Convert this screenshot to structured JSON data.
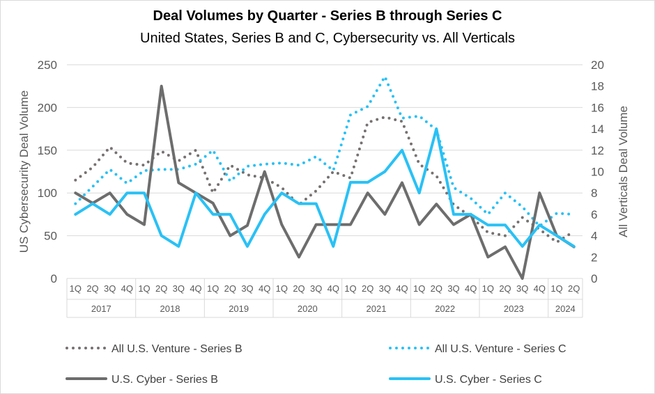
{
  "chart_data": {
    "type": "line",
    "title": "Deal Volumes by Quarter - Series B through Series C",
    "subtitle": "United States, Series B and C, Cybersecurity vs. All Verticals",
    "ylabel": "US Cybersecurity Deal Volume",
    "y2label": "All Verticals Deal Volume",
    "ylim": [
      0,
      250
    ],
    "y2lim": [
      0,
      20
    ],
    "yticks": [
      0,
      50,
      100,
      150,
      200,
      250
    ],
    "y2ticks": [
      0,
      2,
      4,
      6,
      8,
      10,
      12,
      14,
      16,
      18,
      20
    ],
    "quarters": [
      "1Q",
      "2Q",
      "3Q",
      "4Q",
      "1Q",
      "2Q",
      "3Q",
      "4Q",
      "1Q",
      "2Q",
      "3Q",
      "4Q",
      "1Q",
      "2Q",
      "3Q",
      "4Q",
      "1Q",
      "2Q",
      "3Q",
      "4Q",
      "1Q",
      "2Q",
      "3Q",
      "4Q",
      "1Q",
      "2Q",
      "3Q",
      "4Q",
      "1Q",
      "2Q"
    ],
    "years": [
      {
        "label": "2017",
        "count": 4
      },
      {
        "label": "2018",
        "count": 4
      },
      {
        "label": "2019",
        "count": 4
      },
      {
        "label": "2020",
        "count": 4
      },
      {
        "label": "2021",
        "count": 4
      },
      {
        "label": "2022",
        "count": 4
      },
      {
        "label": "2023",
        "count": 4
      },
      {
        "label": "2024",
        "count": 2
      }
    ],
    "grid": true,
    "legend_position": "bottom",
    "series": [
      {
        "name": "All U.S. Venture - Series B",
        "axis": "right",
        "style": "dotted",
        "color": "#767171",
        "values": [
          9.2,
          10.4,
          12.3,
          10.8,
          10.6,
          11.9,
          11.0,
          12.0,
          8.0,
          10.6,
          9.7,
          9.4,
          8.5,
          6.9,
          8.2,
          10.0,
          9.4,
          14.6,
          15.1,
          14.7,
          10.7,
          9.6,
          6.9,
          5.8,
          4.3,
          4.0,
          5.7,
          4.6,
          3.4,
          4.4
        ]
      },
      {
        "name": "All U.S. Venture - Series C",
        "axis": "right",
        "style": "dotted",
        "color": "#29c1f5",
        "values": [
          7.0,
          8.6,
          10.2,
          8.9,
          10.1,
          10.2,
          10.2,
          10.7,
          12.0,
          9.1,
          10.5,
          10.7,
          10.8,
          10.6,
          11.4,
          10.1,
          15.3,
          16.1,
          18.9,
          15.0,
          15.2,
          13.9,
          8.5,
          7.5,
          6.0,
          8.0,
          6.7,
          4.9,
          6.1,
          6.0
        ]
      },
      {
        "name": "U.S. Cyber - Series B",
        "axis": "left",
        "style": "solid",
        "color": "#6d6d6d",
        "values": [
          100,
          88,
          100,
          75,
          63,
          225,
          112,
          100,
          88,
          50,
          62,
          125,
          63,
          25,
          63,
          63,
          63,
          100,
          75,
          112,
          63,
          87,
          63,
          75,
          25,
          37,
          0,
          100,
          50,
          37
        ]
      },
      {
        "name": "U.S. Cyber - Series C",
        "axis": "right",
        "style": "solid",
        "color": "#29c1f5",
        "values": [
          6,
          7,
          6,
          8,
          8,
          4,
          3,
          8,
          6,
          6,
          3,
          6,
          8,
          7,
          7,
          3,
          9,
          9,
          10,
          12,
          8,
          14,
          6,
          6,
          5,
          5,
          3,
          5,
          4,
          3
        ]
      }
    ]
  }
}
